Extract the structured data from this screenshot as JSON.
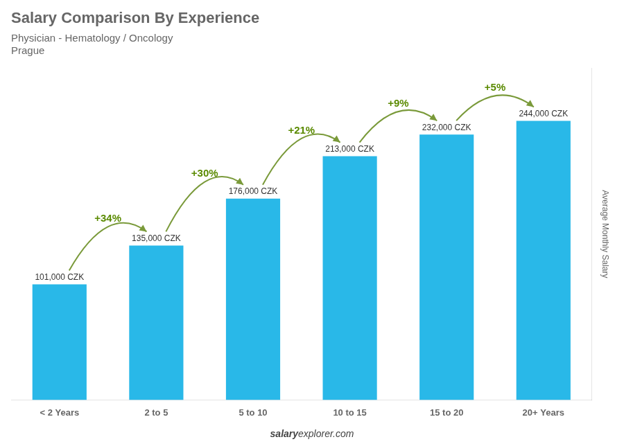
{
  "chart_data": {
    "type": "bar",
    "title": "Salary Comparison By Experience",
    "subtitle": [
      "Physician - Hematology / Oncology",
      "Prague"
    ],
    "categories": [
      "< 2 Years",
      "2 to 5",
      "5 to 10",
      "10 to 15",
      "15 to 20",
      "20+ Years"
    ],
    "values": [
      101000,
      135000,
      176000,
      213000,
      232000,
      244000
    ],
    "value_labels": [
      "101,000 CZK",
      "135,000 CZK",
      "176,000 CZK",
      "213,000 CZK",
      "232,000 CZK",
      "244,000 CZK"
    ],
    "data_labels": true,
    "color": "#29b8e8",
    "ylabel": "Average Monthly Salary",
    "ylim": [
      0,
      290000
    ],
    "tick_labels": "x",
    "grid": false,
    "annotations": [
      "+34%",
      "+30%",
      "+21%",
      "+9%",
      "+5%"
    ],
    "footer": [
      "salary",
      "explorer.com"
    ]
  }
}
